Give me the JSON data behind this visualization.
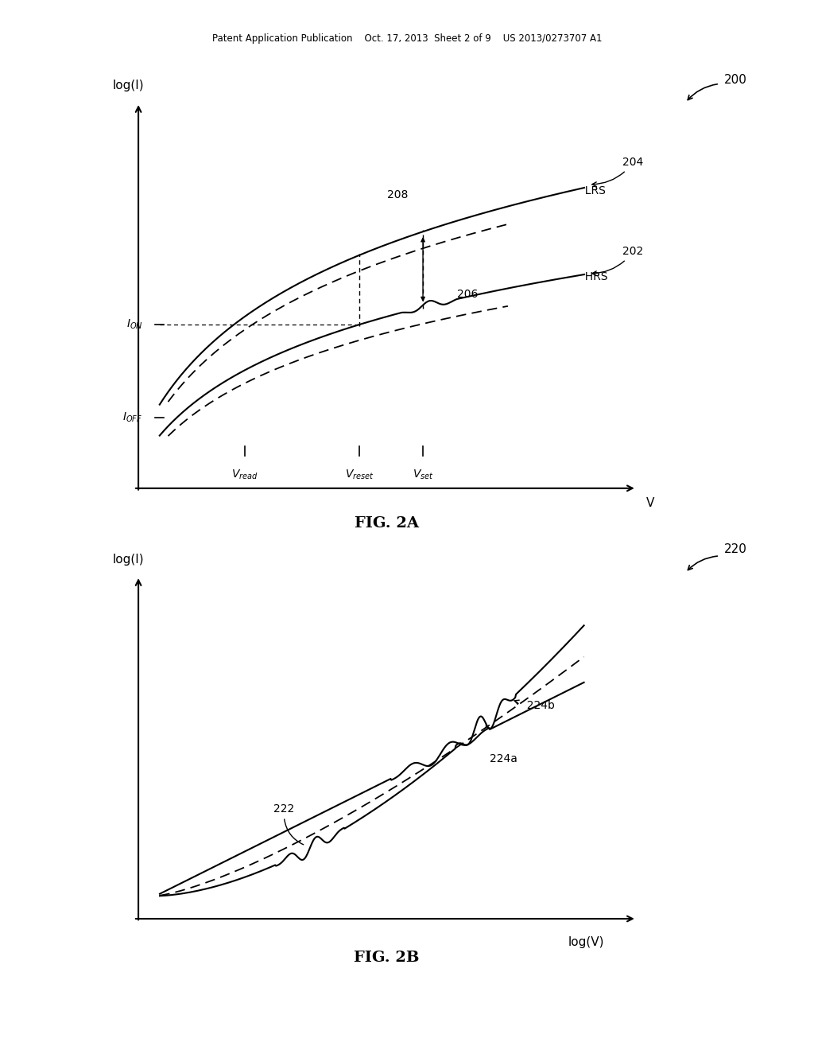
{
  "bg_color": "#ffffff",
  "header_text": "Patent Application Publication    Oct. 17, 2013  Sheet 2 of 9    US 2013/0273707 A1",
  "fig2a_label": "FIG. 2A",
  "fig2b_label": "FIG. 2B",
  "fig2a_ref": "200",
  "fig2b_ref": "220",
  "fig2a_ylabel": "log(I)",
  "fig2a_xlabel": "V",
  "fig2b_ylabel": "log(I)",
  "fig2b_xlabel": "log(V)",
  "lrs_label": "LRS",
  "hrs_label": "HRS",
  "label_202": "202",
  "label_204": "204",
  "label_206": "206",
  "label_208": "208",
  "label_222": "222",
  "label_224a": "224a",
  "label_224b": "224b"
}
